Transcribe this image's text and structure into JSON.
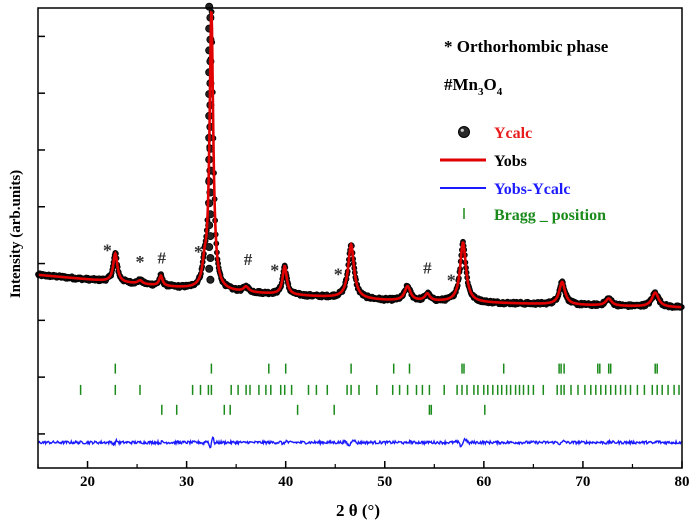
{
  "chart_data": {
    "type": "line",
    "title": "",
    "xlabel": "2 θ (°)",
    "ylabel": "Intensity (arb.units)",
    "xlim": [
      15,
      80
    ],
    "ylim": [
      -1.0,
      11.0
    ],
    "xticks": [
      20,
      30,
      40,
      50,
      60,
      70,
      80
    ],
    "grid": false,
    "legend_position": "top-right",
    "phase_notes": {
      "orthorhombic": "* Orthorhombic phase",
      "mn3o4_prefix": "#Mn",
      "mn3o4_sub1": "3",
      "mn3o4_mid": "O",
      "mn3o4_sub2": "4"
    },
    "legend": [
      {
        "key": "points",
        "label": "Ycalc",
        "color": "#e81c1c"
      },
      {
        "key": "line_red",
        "label": "Yobs",
        "color": "#000000"
      },
      {
        "key": "line_blue",
        "label": "Yobs-Ycalc",
        "color": "#1c1cff"
      },
      {
        "key": "bragg",
        "label": "Bragg _ position",
        "color": "#1a8a1a"
      }
    ],
    "series": [
      {
        "name": "Ycalc",
        "style": "points",
        "color": "#000000"
      },
      {
        "name": "Yobs",
        "style": "line",
        "color": "#e00000"
      },
      {
        "name": "Yobs-Ycalc",
        "style": "line",
        "color": "#1a1aff"
      }
    ],
    "background": {
      "x": [
        15,
        32,
        50,
        80
      ],
      "y": [
        1.6,
        1.05,
        0.7,
        0.45
      ]
    },
    "peaks": [
      {
        "x": 22.8,
        "h": 1.0,
        "w": 0.25
      },
      {
        "x": 25.3,
        "h": 0.12,
        "w": 0.3
      },
      {
        "x": 27.4,
        "h": 0.35,
        "w": 0.2
      },
      {
        "x": 31.8,
        "h": 0.6,
        "w": 0.25
      },
      {
        "x": 32.5,
        "h": 9.8,
        "w": 0.22
      },
      {
        "x": 36.0,
        "h": 0.18,
        "w": 0.3
      },
      {
        "x": 39.9,
        "h": 1.0,
        "w": 0.25
      },
      {
        "x": 46.6,
        "h": 1.9,
        "w": 0.35
      },
      {
        "x": 52.3,
        "h": 0.5,
        "w": 0.35
      },
      {
        "x": 54.3,
        "h": 0.25,
        "w": 0.3
      },
      {
        "x": 57.9,
        "h": 2.1,
        "w": 0.35
      },
      {
        "x": 67.9,
        "h": 0.8,
        "w": 0.35
      },
      {
        "x": 72.6,
        "h": 0.25,
        "w": 0.35
      },
      {
        "x": 77.3,
        "h": 0.5,
        "w": 0.4
      }
    ],
    "peak_markers": [
      {
        "x": 22.0,
        "y": 2.25,
        "symbol": "*"
      },
      {
        "x": 25.3,
        "y": 1.85,
        "symbol": "*"
      },
      {
        "x": 27.5,
        "y": 2.0,
        "symbol": "#"
      },
      {
        "x": 31.2,
        "y": 2.2,
        "symbol": "*"
      },
      {
        "x": 36.2,
        "y": 1.95,
        "symbol": "#"
      },
      {
        "x": 38.9,
        "y": 1.55,
        "symbol": "*"
      },
      {
        "x": 45.3,
        "y": 1.4,
        "symbol": "*"
      },
      {
        "x": 54.3,
        "y": 1.65,
        "symbol": "#"
      },
      {
        "x": 56.7,
        "y": 1.2,
        "symbol": "*"
      }
    ],
    "bragg_rows": [
      {
        "y": -1.7,
        "positions": [
          22.8,
          32.5,
          38.3,
          40.0,
          46.6,
          50.9,
          52.5,
          57.8,
          58.0,
          62.0,
          67.6,
          67.8,
          68.1,
          71.5,
          71.7,
          72.6,
          72.8,
          77.3,
          77.5
        ]
      },
      {
        "y": -2.45,
        "positions": [
          19.3,
          22.8,
          25.3,
          30.6,
          31.4,
          32.2,
          32.5,
          34.5,
          35.2,
          36.0,
          36.4,
          37.3,
          38.0,
          38.5,
          39.5,
          39.9,
          40.6,
          42.3,
          43.1,
          44.2,
          46.2,
          46.6,
          47.4,
          49.2,
          50.8,
          51.5,
          52.3,
          53.2,
          53.8,
          54.5,
          56.0,
          57.3,
          57.8,
          58.3,
          59.0,
          59.4,
          60.0,
          60.4,
          60.9,
          61.4,
          61.8,
          62.3,
          62.7,
          63.2,
          63.6,
          64.0,
          64.5,
          65.0,
          66.0,
          67.4,
          67.8,
          68.1,
          68.8,
          69.5,
          70.2,
          70.8,
          71.3,
          71.8,
          72.3,
          72.8,
          73.3,
          73.8,
          74.3,
          74.8,
          75.5,
          76.2,
          77.0,
          77.5,
          78.0,
          78.6,
          79.2,
          79.7
        ]
      },
      {
        "y": -3.15,
        "positions": [
          27.5,
          29.0,
          33.8,
          34.4,
          41.2,
          44.9,
          54.5,
          54.7,
          60.1
        ]
      }
    ],
    "difference_baseline": -4.3
  }
}
